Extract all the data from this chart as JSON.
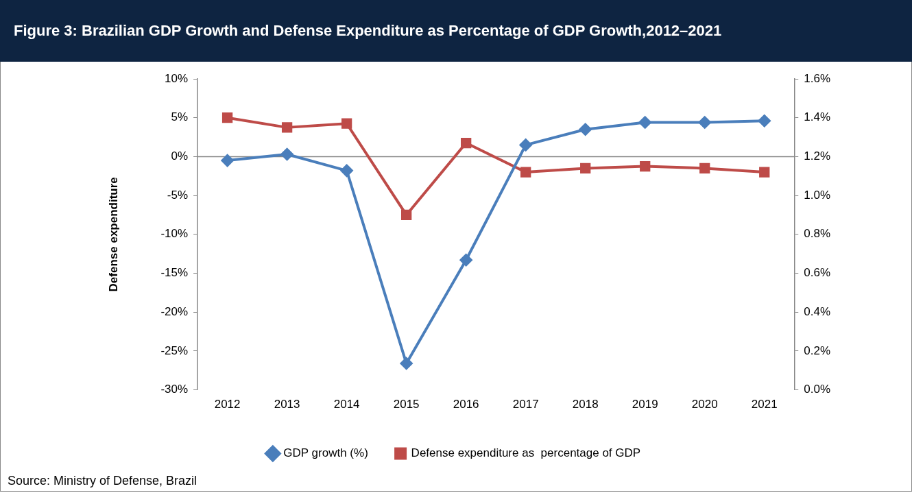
{
  "chart_data": {
    "type": "line",
    "title": "Figure 3: Brazilian GDP Growth and Defense Expenditure as Percentage of GDP Growth,2012–2021",
    "ylabel": "Defense expenditure",
    "categories": [
      "2012",
      "2013",
      "2014",
      "2015",
      "2016",
      "2017",
      "2018",
      "2019",
      "2020",
      "2021"
    ],
    "series": [
      {
        "name": "GDP growth (%)",
        "color": "#4a7ebb",
        "marker": "diamond",
        "values": [
          -0.5,
          0.3,
          -1.8,
          -26.6,
          -13.3,
          1.5,
          3.5,
          4.4,
          4.4,
          4.6
        ]
      },
      {
        "name": "Defense expenditure as  percentage of GDP",
        "color": "#be4b48",
        "marker": "square",
        "axis": "y2",
        "values": [
          1.4,
          1.35,
          1.37,
          0.9,
          1.27,
          1.12,
          1.14,
          1.15,
          1.14,
          1.12
        ]
      }
    ],
    "ylim": [
      -30,
      10
    ],
    "yticks": [
      {
        "value": -30,
        "label": "-30%"
      },
      {
        "value": -25,
        "label": "-25%"
      },
      {
        "value": -20,
        "label": "-20%"
      },
      {
        "value": -15,
        "label": "-15%"
      },
      {
        "value": -10,
        "label": "-10%"
      },
      {
        "value": -5,
        "label": "-5%"
      },
      {
        "value": 0,
        "label": "0%"
      },
      {
        "value": 5,
        "label": "5%"
      },
      {
        "value": 10,
        "label": "10%"
      }
    ],
    "y2lim": [
      0,
      1.6
    ],
    "y2ticks": [
      {
        "value": 0,
        "label": "0.0%"
      },
      {
        "value": 0.2,
        "label": "0.2%"
      },
      {
        "value": 0.4,
        "label": "0.4%"
      },
      {
        "value": 0.6,
        "label": "0.6%"
      },
      {
        "value": 0.8,
        "label": "0.8%"
      },
      {
        "value": 1,
        "label": "1.0%"
      },
      {
        "value": 1.2,
        "label": "1.2%"
      },
      {
        "value": 1.4,
        "label": "1.4%"
      },
      {
        "value": 1.6,
        "label": "1.6%"
      }
    ],
    "ref_lines": [
      {
        "axis": "y",
        "value": 0,
        "color": "#868686"
      }
    ],
    "grid": false,
    "legend": "bottom",
    "line_style": "solid",
    "annotations": [
      "Source:  Ministry of Defense, Brazil"
    ]
  }
}
